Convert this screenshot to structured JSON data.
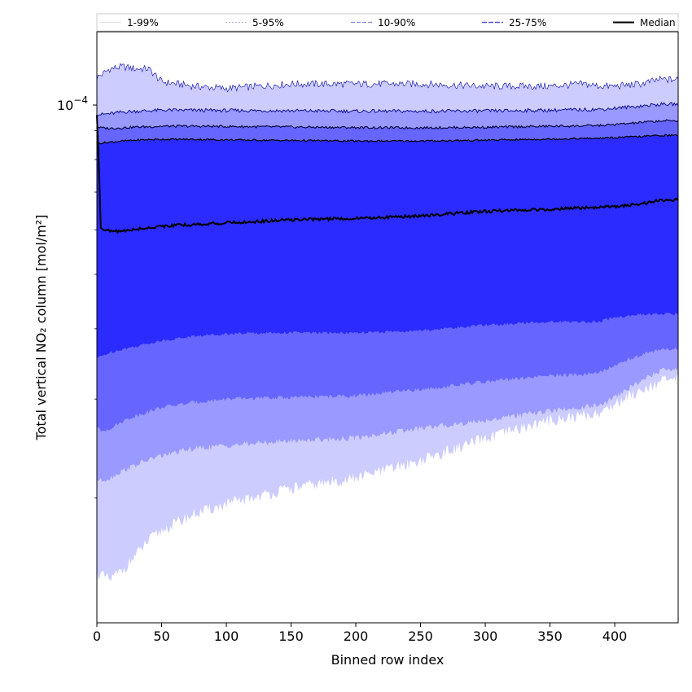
{
  "chart_data": {
    "type": "area",
    "xlabel": "Binned row index",
    "ylabel": "Total vertical NO₂ column [mol/m²]",
    "yscale": "log",
    "xlim": [
      0,
      449
    ],
    "ylim": [
      1.2e-05,
      0.000135
    ],
    "xticks": [
      0,
      50,
      100,
      150,
      200,
      250,
      300,
      350,
      400
    ],
    "yticks": [
      {
        "value": 0.0001,
        "label": "10"
      }
    ],
    "ytick_label_exponent": "−4",
    "legend_position": "top (above axes, full width)",
    "grid": false,
    "x": [
      0,
      3,
      10,
      20,
      30,
      40,
      50,
      75,
      100,
      150,
      200,
      250,
      300,
      350,
      375,
      390,
      400,
      420,
      435,
      449
    ],
    "series": [
      {
        "name": "1-99%",
        "lower": [
          1.47e-05,
          1.46e-05,
          1.43e-05,
          1.49e-05,
          1.58e-05,
          1.68e-05,
          1.75e-05,
          1.87e-05,
          1.95e-05,
          2.08e-05,
          2.17e-05,
          2.33e-05,
          2.55e-05,
          2.75e-05,
          2.8e-05,
          2.84e-05,
          2.94e-05,
          3.12e-05,
          3.22e-05,
          3.25e-05
        ],
        "upper": [
          0.000112,
          0.000113,
          0.000116,
          0.000117,
          0.000116,
          0.000116,
          0.00011,
          0.000108,
          0.000107,
          0.000109,
          0.000109,
          0.000109,
          0.000108,
          0.000108,
          0.000109,
          0.000108,
          0.000108,
          0.000109,
          0.000111,
          0.000111
        ],
        "color": "#ccccff"
      },
      {
        "name": "5-95%",
        "lower": [
          2.16e-05,
          2.15e-05,
          2.17e-05,
          2.24e-05,
          2.29e-05,
          2.34e-05,
          2.38e-05,
          2.45e-05,
          2.48e-05,
          2.53e-05,
          2.56e-05,
          2.66e-05,
          2.75e-05,
          2.86e-05,
          2.9e-05,
          2.93e-05,
          3.02e-05,
          3.23e-05,
          3.37e-05,
          3.4e-05
        ],
        "upper": [
          9.64e-05,
          9.62e-05,
          9.65e-05,
          9.72e-05,
          9.75e-05,
          9.77e-05,
          9.79e-05,
          9.79e-05,
          9.78e-05,
          9.77e-05,
          9.75e-05,
          9.75e-05,
          9.76e-05,
          9.79e-05,
          9.81e-05,
          9.83e-05,
          9.87e-05,
          9.96e-05,
          0.0001003,
          0.0001004
        ],
        "color": "#9999ff"
      },
      {
        "name": "10-90%",
        "lower": [
          2.68e-05,
          2.63e-05,
          2.66e-05,
          2.74e-05,
          2.8e-05,
          2.85e-05,
          2.9e-05,
          2.96e-05,
          3e-05,
          3.02e-05,
          3.04e-05,
          3.12e-05,
          3.22e-05,
          3.3e-05,
          3.32e-05,
          3.36e-05,
          3.44e-05,
          3.6e-05,
          3.67e-05,
          3.68e-05
        ],
        "upper": [
          9.15e-05,
          9.11e-05,
          9.09e-05,
          9.11e-05,
          9.14e-05,
          9.15e-05,
          9.17e-05,
          9.17e-05,
          9.16e-05,
          9.14e-05,
          9.12e-05,
          9.11e-05,
          9.13e-05,
          9.17e-05,
          9.18e-05,
          9.2e-05,
          9.23e-05,
          9.31e-05,
          9.37e-05,
          9.38e-05
        ],
        "color": "#6666ff"
      },
      {
        "name": "25-75%",
        "lower": [
          3.55e-05,
          3.57e-05,
          3.63e-05,
          3.68e-05,
          3.72e-05,
          3.77e-05,
          3.81e-05,
          3.88e-05,
          3.92e-05,
          3.94e-05,
          3.93e-05,
          3.97e-05,
          4.06e-05,
          4.12e-05,
          4.11e-05,
          4.13e-05,
          4.19e-05,
          4.24e-05,
          4.25e-05,
          4.25e-05
        ],
        "upper": [
          8.53e-05,
          8.56e-05,
          8.59e-05,
          8.63e-05,
          8.66e-05,
          8.68e-05,
          8.69e-05,
          8.69e-05,
          8.67e-05,
          8.65e-05,
          8.63e-05,
          8.63e-05,
          8.66e-05,
          8.7e-05,
          8.72e-05,
          8.73e-05,
          8.75e-05,
          8.79e-05,
          8.83e-05,
          8.84e-05
        ],
        "color": "#2b2bff"
      },
      {
        "name": "Median",
        "values": [
          9.6e-05,
          6.05e-05,
          5.96e-05,
          5.97e-05,
          6.01e-05,
          6.05e-05,
          6.09e-05,
          6.13e-05,
          6.17e-05,
          6.25e-05,
          6.29e-05,
          6.35e-05,
          6.47e-05,
          6.53e-05,
          6.56e-05,
          6.58e-05,
          6.59e-05,
          6.67e-05,
          6.76e-05,
          6.79e-05
        ],
        "color": "#000000"
      }
    ]
  }
}
